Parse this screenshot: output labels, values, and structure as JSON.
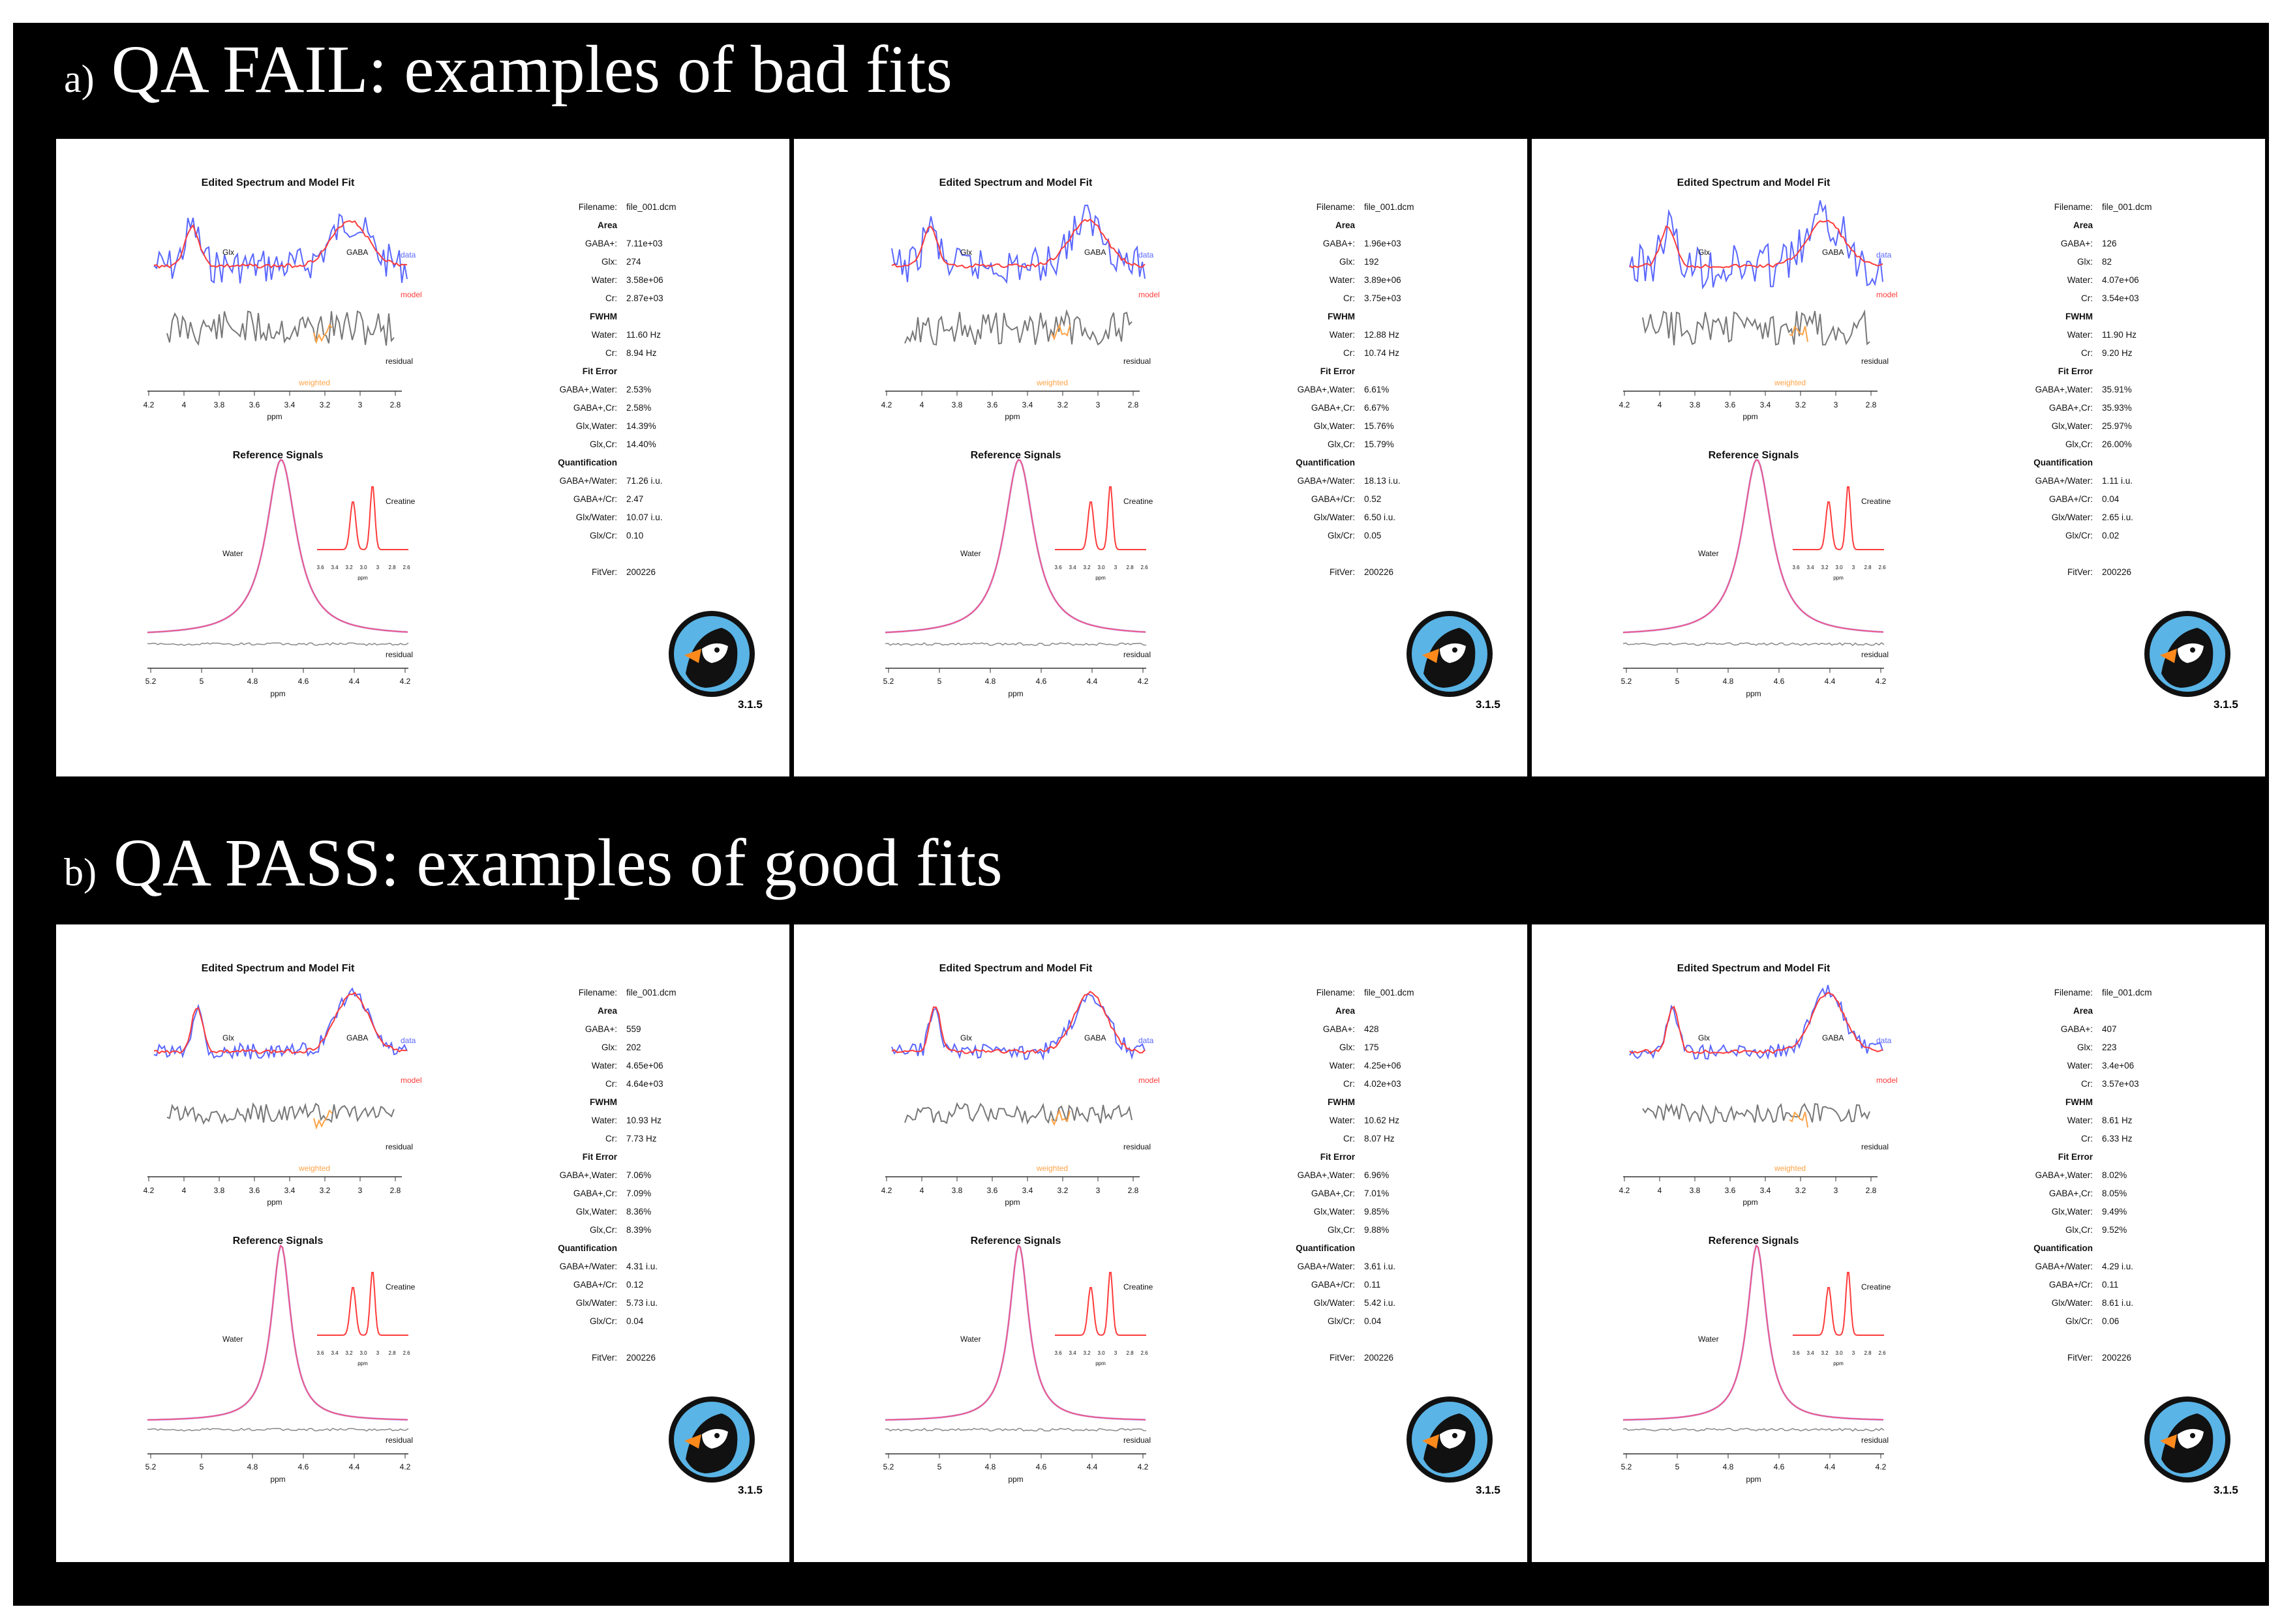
{
  "sections": [
    {
      "tag": "a)",
      "title": "QA FAIL: examples of bad fits",
      "panels": [
        {
          "filename": "file_001.dcm",
          "area": {
            "gaba": "7.11e+03",
            "glx": "274",
            "water": "3.58e+06",
            "cr": "2.87e+03"
          },
          "fwhm": {
            "water": "11.60 Hz",
            "cr": "8.94 Hz"
          },
          "fit_error": {
            "gaba_water": "2.53%",
            "gaba_cr": "2.58%",
            "glx_water": "14.39%",
            "glx_cr": "14.40%"
          },
          "quant": {
            "gaba_water": "71.26 i.u.",
            "gaba_cr": "2.47",
            "glx_water": "10.07 i.u.",
            "glx_cr": "0.10"
          },
          "fitver": "200226"
        },
        {
          "filename": "file_001.dcm",
          "area": {
            "gaba": "1.96e+03",
            "glx": "192",
            "water": "3.89e+06",
            "cr": "3.75e+03"
          },
          "fwhm": {
            "water": "12.88 Hz",
            "cr": "10.74 Hz"
          },
          "fit_error": {
            "gaba_water": "6.61%",
            "gaba_cr": "6.67%",
            "glx_water": "15.76%",
            "glx_cr": "15.79%"
          },
          "quant": {
            "gaba_water": "18.13 i.u.",
            "gaba_cr": "0.52",
            "glx_water": "6.50 i.u.",
            "glx_cr": "0.05"
          },
          "fitver": "200226"
        },
        {
          "filename": "file_001.dcm",
          "area": {
            "gaba": "126",
            "glx": "82",
            "water": "4.07e+06",
            "cr": "3.54e+03"
          },
          "fwhm": {
            "water": "11.90 Hz",
            "cr": "9.20 Hz"
          },
          "fit_error": {
            "gaba_water": "35.91%",
            "gaba_cr": "35.93%",
            "glx_water": "25.97%",
            "glx_cr": "26.00%"
          },
          "quant": {
            "gaba_water": "1.11 i.u.",
            "gaba_cr": "0.04",
            "glx_water": "2.65 i.u.",
            "glx_cr": "0.02"
          },
          "fitver": "200226"
        }
      ]
    },
    {
      "tag": "b)",
      "title": "QA PASS: examples of good fits",
      "panels": [
        {
          "filename": "file_001.dcm",
          "area": {
            "gaba": "559",
            "glx": "202",
            "water": "4.65e+06",
            "cr": "4.64e+03"
          },
          "fwhm": {
            "water": "10.93 Hz",
            "cr": "7.73 Hz"
          },
          "fit_error": {
            "gaba_water": "7.06%",
            "gaba_cr": "7.09%",
            "glx_water": "8.36%",
            "glx_cr": "8.39%"
          },
          "quant": {
            "gaba_water": "4.31 i.u.",
            "gaba_cr": "0.12",
            "glx_water": "5.73 i.u.",
            "glx_cr": "0.04"
          },
          "fitver": "200226"
        },
        {
          "filename": "file_001.dcm",
          "area": {
            "gaba": "428",
            "glx": "175",
            "water": "4.25e+06",
            "cr": "4.02e+03"
          },
          "fwhm": {
            "water": "10.62 Hz",
            "cr": "8.07 Hz"
          },
          "fit_error": {
            "gaba_water": "6.96%",
            "gaba_cr": "7.01%",
            "glx_water": "9.85%",
            "glx_cr": "9.88%"
          },
          "quant": {
            "gaba_water": "3.61 i.u.",
            "gaba_cr": "0.11",
            "glx_water": "5.42 i.u.",
            "glx_cr": "0.04"
          },
          "fitver": "200226"
        },
        {
          "filename": "file_001.dcm",
          "area": {
            "gaba": "407",
            "glx": "223",
            "water": "3.4e+06",
            "cr": "3.57e+03"
          },
          "fwhm": {
            "water": "8.61 Hz",
            "cr": "6.33 Hz"
          },
          "fit_error": {
            "gaba_water": "8.02%",
            "gaba_cr": "8.05%",
            "glx_water": "9.49%",
            "glx_cr": "9.52%"
          },
          "quant": {
            "gaba_water": "4.29 i.u.",
            "gaba_cr": "0.11",
            "glx_water": "8.61 i.u.",
            "glx_cr": "0.06"
          },
          "fitver": "200226"
        }
      ]
    }
  ],
  "labels": {
    "spectrum_title": "Edited Spectrum and Model Fit",
    "reference_title": "Reference Signals",
    "ppm": "ppm",
    "glx": "Glx",
    "gaba": "GABA",
    "data": "data",
    "model": "model",
    "residual": "residual",
    "weighted": "weighted",
    "water": "Water",
    "creatine": "Creatine",
    "filename": "Filename:",
    "area": "Area",
    "fwhm": "FWHM",
    "fit_error": "Fit Error",
    "quantification": "Quantification",
    "fitver": "FitVer:",
    "k_gaba": "GABA+:",
    "k_glx": "Glx:",
    "k_water": "Water:",
    "k_cr": "Cr:",
    "k_gaba_water": "GABA+,Water:",
    "k_gaba_cr": "GABA+,Cr:",
    "k_glx_water": "Glx,Water:",
    "k_glx_cr": "Glx,Cr:",
    "k_q_gaba_water": "GABA+/Water:",
    "k_q_gaba_cr": "GABA+/Cr:",
    "k_q_glx_water": "Glx/Water:",
    "k_q_glx_cr": "Glx/Cr:",
    "version": "3.1.5",
    "top_ticks": [
      "4.2",
      "4",
      "3.8",
      "3.6",
      "3.4",
      "3.2",
      "3",
      "2.8"
    ],
    "bottom_ticks": [
      "5.2",
      "5",
      "4.8",
      "4.6",
      "4.4",
      "4.2"
    ],
    "inset_ticks": [
      "3.6",
      "3.4",
      "3.2",
      "3.0",
      "3",
      "2.8",
      "2.6"
    ]
  },
  "colors": {
    "data": "#5a67ff",
    "model": "#ff3b3b",
    "residual": "#777777",
    "weighted": "#ffa347",
    "water": "#c9a0ff",
    "background": "#000000"
  }
}
